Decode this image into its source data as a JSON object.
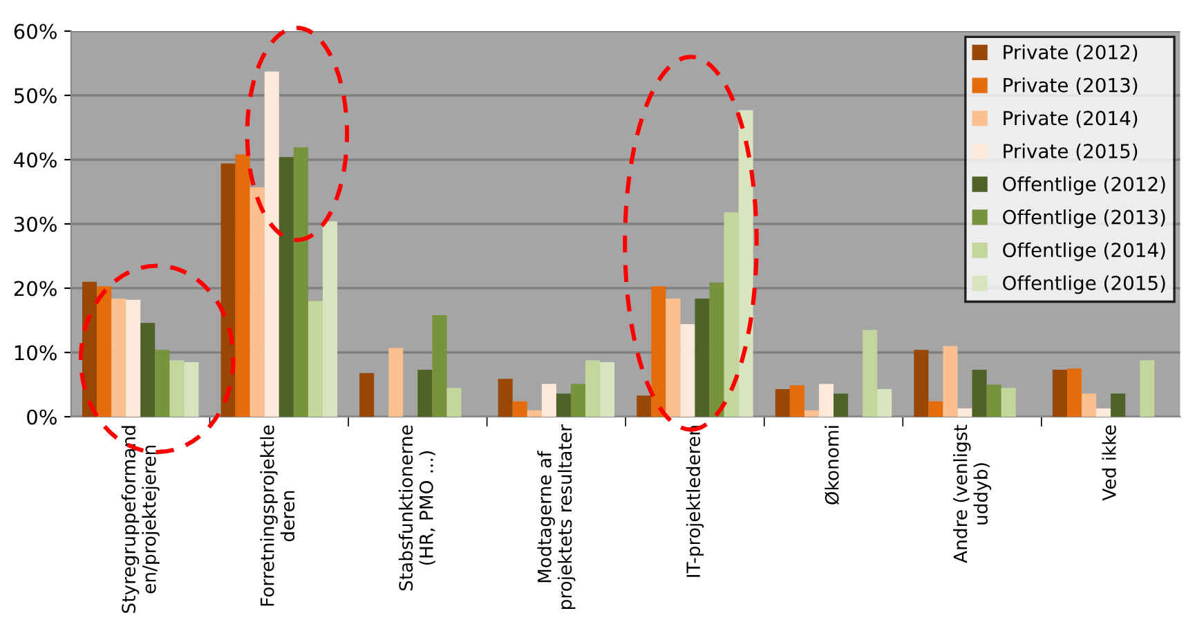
{
  "chart_data": {
    "type": "bar",
    "categories": [
      "Styregruppeformand\nen/projektejeren",
      "Forretningsprojektle\nderen",
      "Stabsfunktionerne\n(HR, PMO ...)",
      "Modtagerne af\nprojektets resultater",
      "IT-projektlederen",
      "Økonomi",
      "Andre (venligst\nuddyb)",
      "Ved ikke"
    ],
    "series": [
      {
        "name": "Private (2012)",
        "color": "#994706",
        "values": [
          21.0,
          39.4,
          6.8,
          5.9,
          3.3,
          4.3,
          10.4,
          7.3
        ]
      },
      {
        "name": "Private (2013)",
        "color": "#e46c0a",
        "values": [
          20.3,
          40.8,
          0,
          2.4,
          20.3,
          4.9,
          2.4,
          7.5
        ]
      },
      {
        "name": "Private (2014)",
        "color": "#fac090",
        "values": [
          18.4,
          35.7,
          10.7,
          1.0,
          18.4,
          1.0,
          11.0,
          3.6
        ]
      },
      {
        "name": "Private (2015)",
        "color": "#fde9d9",
        "values": [
          18.2,
          53.7,
          0,
          5.1,
          14.4,
          5.1,
          1.3,
          1.3
        ]
      },
      {
        "name": "Offentlige (2012)",
        "color": "#4f6228",
        "values": [
          14.6,
          40.4,
          7.3,
          3.6,
          18.4,
          3.6,
          7.3,
          3.6
        ]
      },
      {
        "name": "Offentlige (2013)",
        "color": "#77933c",
        "values": [
          10.4,
          41.9,
          15.8,
          5.1,
          20.9,
          0,
          5.0,
          0
        ]
      },
      {
        "name": "Offentlige (2014)",
        "color": "#c3d69b",
        "values": [
          8.8,
          18.0,
          4.5,
          8.8,
          31.8,
          13.5,
          4.5,
          8.8
        ]
      },
      {
        "name": "Offentlige (2015)",
        "color": "#d7e4bd",
        "values": [
          8.5,
          30.4,
          0,
          8.5,
          47.7,
          4.3,
          0,
          0
        ]
      }
    ],
    "ylim": [
      0,
      60
    ],
    "yticks": [
      {
        "value": 0,
        "label": "0%"
      },
      {
        "value": 10,
        "label": "10%"
      },
      {
        "value": 20,
        "label": "20%"
      },
      {
        "value": 30,
        "label": "30%"
      },
      {
        "value": 40,
        "label": "40%"
      },
      {
        "value": 50,
        "label": "50%"
      },
      {
        "value": 60,
        "label": "60%"
      }
    ],
    "grid": "y",
    "legend": "top right"
  }
}
